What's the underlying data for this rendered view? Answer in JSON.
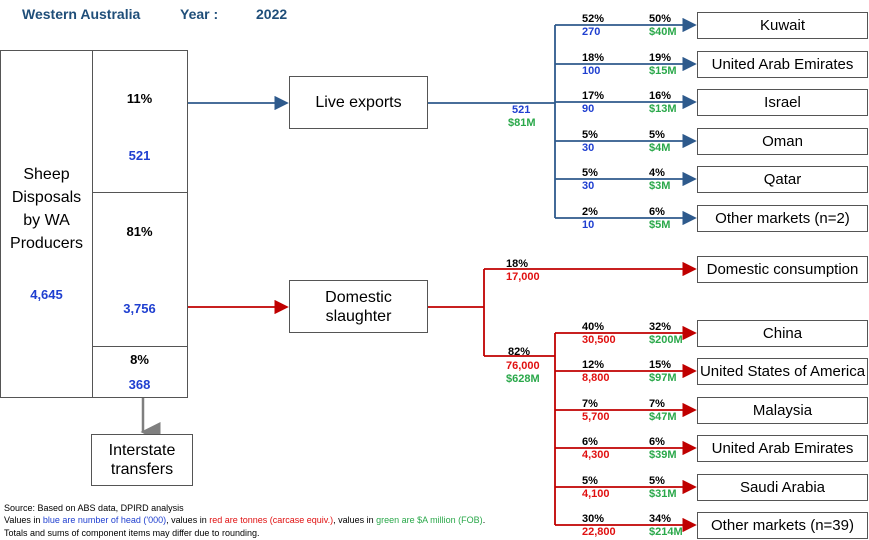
{
  "header": {
    "region": "Western Australia",
    "year_label": "Year :",
    "year": "2022"
  },
  "producers": {
    "label_lines": [
      "Sheep",
      "Disposals",
      "by WA",
      "Producers"
    ],
    "total": "4,645",
    "segments": [
      {
        "pct": "11%",
        "head": "521"
      },
      {
        "pct": "81%",
        "head": "3,756"
      },
      {
        "pct": "8%",
        "head": "368"
      }
    ]
  },
  "live_exports": {
    "label": "Live exports",
    "flow_head": "521",
    "flow_value": "$81M",
    "destinations": [
      {
        "name": "Kuwait",
        "head_pct": "52%",
        "head": "270",
        "value_pct": "50%",
        "value": "$40M"
      },
      {
        "name": "United Arab Emirates",
        "head_pct": "18%",
        "head": "100",
        "value_pct": "19%",
        "value": "$15M"
      },
      {
        "name": "Israel",
        "head_pct": "17%",
        "head": "90",
        "value_pct": "16%",
        "value": "$13M"
      },
      {
        "name": "Oman",
        "head_pct": "5%",
        "head": "30",
        "value_pct": "5%",
        "value": "$4M"
      },
      {
        "name": "Qatar",
        "head_pct": "5%",
        "head": "30",
        "value_pct": "4%",
        "value": "$3M"
      },
      {
        "name": "Other markets (n=2)",
        "head_pct": "2%",
        "head": "10",
        "value_pct": "6%",
        "value": "$5M"
      }
    ]
  },
  "domestic_slaughter": {
    "label_lines": [
      "Domestic",
      "slaughter"
    ],
    "domestic": {
      "name": "Domestic consumption",
      "pct": "18%",
      "tonnes": "17,000"
    },
    "export": {
      "pct": "82%",
      "tonnes": "76,000",
      "value": "$628M"
    },
    "destinations": [
      {
        "name": "China",
        "tonnes_pct": "40%",
        "tonnes": "30,500",
        "value_pct": "32%",
        "value": "$200M"
      },
      {
        "name": "United States of America",
        "tonnes_pct": "12%",
        "tonnes": "8,800",
        "value_pct": "15%",
        "value": "$97M"
      },
      {
        "name": "Malaysia",
        "tonnes_pct": "7%",
        "tonnes": "5,700",
        "value_pct": "7%",
        "value": "$47M"
      },
      {
        "name": "United Arab Emirates",
        "tonnes_pct": "6%",
        "tonnes": "4,300",
        "value_pct": "6%",
        "value": "$39M"
      },
      {
        "name": "Saudi Arabia",
        "tonnes_pct": "5%",
        "tonnes": "4,100",
        "value_pct": "5%",
        "value": "$31M"
      },
      {
        "name": "Other markets (n=39)",
        "tonnes_pct": "30%",
        "tonnes": "22,800",
        "value_pct": "34%",
        "value": "$214M"
      }
    ]
  },
  "interstate": {
    "label_lines": [
      "Interstate",
      "transfers"
    ]
  },
  "footnotes": {
    "source": "Source: Based on ABS data, DPIRD analysis",
    "legend_parts": [
      "Values in ",
      "blue are number of head ('000)",
      ", values in ",
      "red are tonnes (carcase equiv.)",
      ", values in ",
      "green are $A million (FOB)",
      "."
    ],
    "rounding": "Totals and sums of component items may differ due to rounding."
  },
  "colors": {
    "live": "#2e5a8c",
    "slaughter": "#c00000",
    "interstate": "#7f7f7f",
    "blue": "#1f3fd0",
    "red": "#e01010",
    "green": "#2aa84a"
  }
}
